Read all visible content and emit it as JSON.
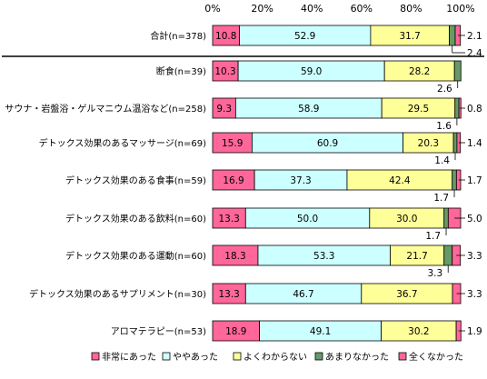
{
  "chart_data": {
    "type": "bar",
    "stacked": true,
    "percent": true,
    "orientation": "horizontal",
    "xlim": [
      0,
      100
    ],
    "x_ticks": [
      "0%",
      "20%",
      "40%",
      "60%",
      "80%",
      "100%"
    ],
    "grid": false,
    "legend_placement": "bottom",
    "categories": [
      "合計(n=378)",
      "断食(n=39)",
      "サウナ・岩盤浴・ゲルマニウム温浴など(n=258)",
      "デトックス効果のあるマッサージ(n=69)",
      "デトックス効果のある食事(n=59)",
      "デトックス効果のある飲料(n=60)",
      "デトックス効果のある運動(n=60)",
      "デトックス効果のあるサプリメント(n=30)",
      "アロマテラピー(n=53)"
    ],
    "series": [
      {
        "name": "非常にあった",
        "color": "#ff6699",
        "values": [
          10.8,
          10.3,
          9.3,
          15.9,
          16.9,
          13.3,
          18.3,
          13.3,
          18.9
        ],
        "labels": [
          "10.8",
          "10.3",
          "9.3",
          "15.9",
          "16.9",
          "13.3",
          "18.3",
          "13.3",
          "18.9"
        ]
      },
      {
        "name": "ややあった",
        "color": "#ccffff",
        "values": [
          52.9,
          59.0,
          58.9,
          60.9,
          37.3,
          50.0,
          53.3,
          46.7,
          49.1
        ],
        "labels": [
          "52.9",
          "59.0",
          "58.9",
          "60.9",
          "37.3",
          "50.0",
          "53.3",
          "46.7",
          "49.1"
        ]
      },
      {
        "name": "よくわからない",
        "color": "#ffff99",
        "values": [
          31.7,
          28.2,
          29.5,
          20.3,
          42.4,
          30.0,
          21.7,
          36.7,
          30.2
        ],
        "labels": [
          "31.7",
          "28.2",
          "29.5",
          "20.3",
          "42.4",
          "30.0",
          "21.7",
          "36.7",
          "30.2"
        ]
      },
      {
        "name": "あまりなかった",
        "color": "#669966",
        "values": [
          2.4,
          2.6,
          1.6,
          1.4,
          1.7,
          1.7,
          3.3,
          0,
          0
        ],
        "labels": [
          "2.4",
          "2.6",
          "1.6",
          "1.4",
          "1.7",
          "1.7",
          "3.3",
          "",
          ""
        ]
      },
      {
        "name": "全くなかった",
        "color": "#ff6699",
        "values": [
          2.1,
          0,
          0.8,
          1.4,
          1.7,
          5.0,
          3.3,
          3.3,
          1.9
        ],
        "labels": [
          "2.1",
          "",
          "0.8",
          "1.4",
          "1.7",
          "5.0",
          "3.3",
          "3.3",
          "1.9"
        ]
      }
    ]
  }
}
